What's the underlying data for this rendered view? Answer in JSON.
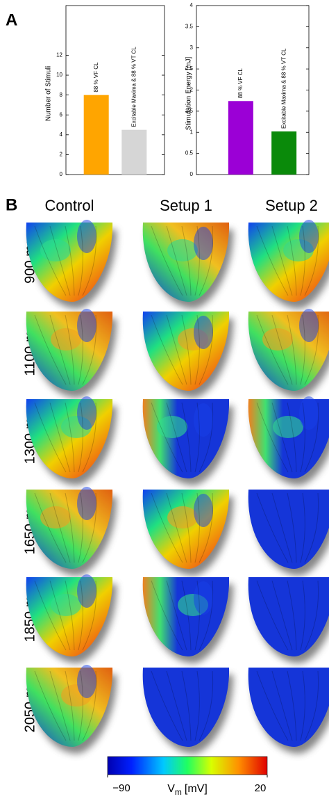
{
  "panel_labels": [
    "A",
    "B"
  ],
  "chart_data": [
    {
      "type": "bar",
      "ylabel": "Number of Stimuli",
      "categories": [
        "88 % VF CL",
        "Excitable Maxima & 88 % VT CL"
      ],
      "values": [
        8,
        4.5
      ],
      "colors": [
        "#ffa500",
        "#d6d6d6"
      ],
      "ylim": [
        0,
        17
      ],
      "yticks": [
        0,
        2,
        4,
        6,
        8,
        10,
        12
      ]
    },
    {
      "type": "bar",
      "ylabel": "Stimulation Energy [mJ]",
      "categories": [
        "88 % VF CL",
        "Excitable Maxima & 88 % VT CL"
      ],
      "values": [
        1.74,
        1.02
      ],
      "colors": [
        "#9b00d6",
        "#0a8a0a"
      ],
      "ylim": [
        0,
        4
      ],
      "yticks": [
        0,
        0.5,
        1,
        1.5,
        2,
        2.5,
        3,
        3.5,
        4
      ]
    }
  ],
  "columns": [
    "Control",
    "Setup 1",
    "Setup 2"
  ],
  "rows": [
    "900 ms",
    "1100 ms",
    "1300 ms",
    "1650 ms",
    "1850 ms",
    "2050 ms"
  ],
  "colorbar": {
    "label": "V",
    "label_subscript": "m",
    "label_unit": "[mV]",
    "lim": [
      -90,
      20
    ],
    "ticks": [
      {
        "value": -90,
        "label": "−90"
      },
      20
    ]
  }
}
